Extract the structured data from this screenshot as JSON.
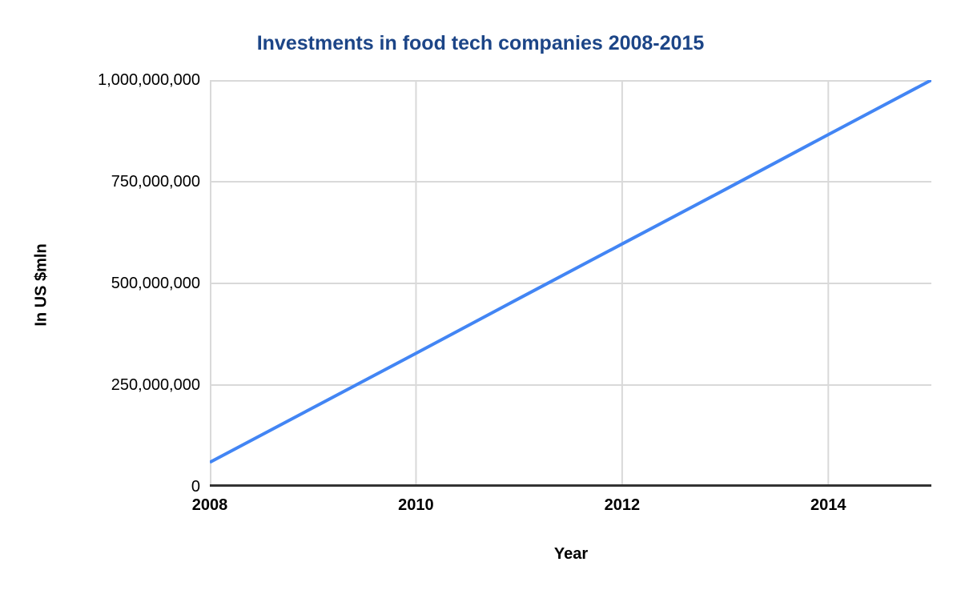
{
  "chart_data": {
    "type": "line",
    "title": "Investments in food tech companies 2008-2015",
    "xlabel": "Year",
    "ylabel": "In US $mln",
    "x": [
      2008,
      2009,
      2010,
      2011,
      2012,
      2013,
      2014,
      2015
    ],
    "series": [
      {
        "name": "Investments in food tech companies",
        "values": [
          60000000,
          194000000,
          328000000,
          463000000,
          597000000,
          731000000,
          866000000,
          1000000000
        ]
      }
    ],
    "xlim": [
      2008,
      2015
    ],
    "ylim": [
      0,
      1000000000
    ],
    "x_ticks": {
      "values": [
        2008,
        2010,
        2012,
        2014
      ],
      "labels": [
        "2008",
        "2010",
        "2012",
        "2014"
      ]
    },
    "y_ticks": {
      "values": [
        0,
        250000000,
        500000000,
        750000000,
        1000000000
      ],
      "labels": [
        "0",
        "250,000,000",
        "500,000,000",
        "750,000,000",
        "1,000,000,000"
      ]
    },
    "grid": "both",
    "legend": "none"
  },
  "style": {
    "title_color": "#1c4587",
    "line_color": "#4285f4",
    "grid_color": "#d9d9d9",
    "axis_color": "#333333",
    "text_color": "#000000",
    "background": "#ffffff"
  }
}
